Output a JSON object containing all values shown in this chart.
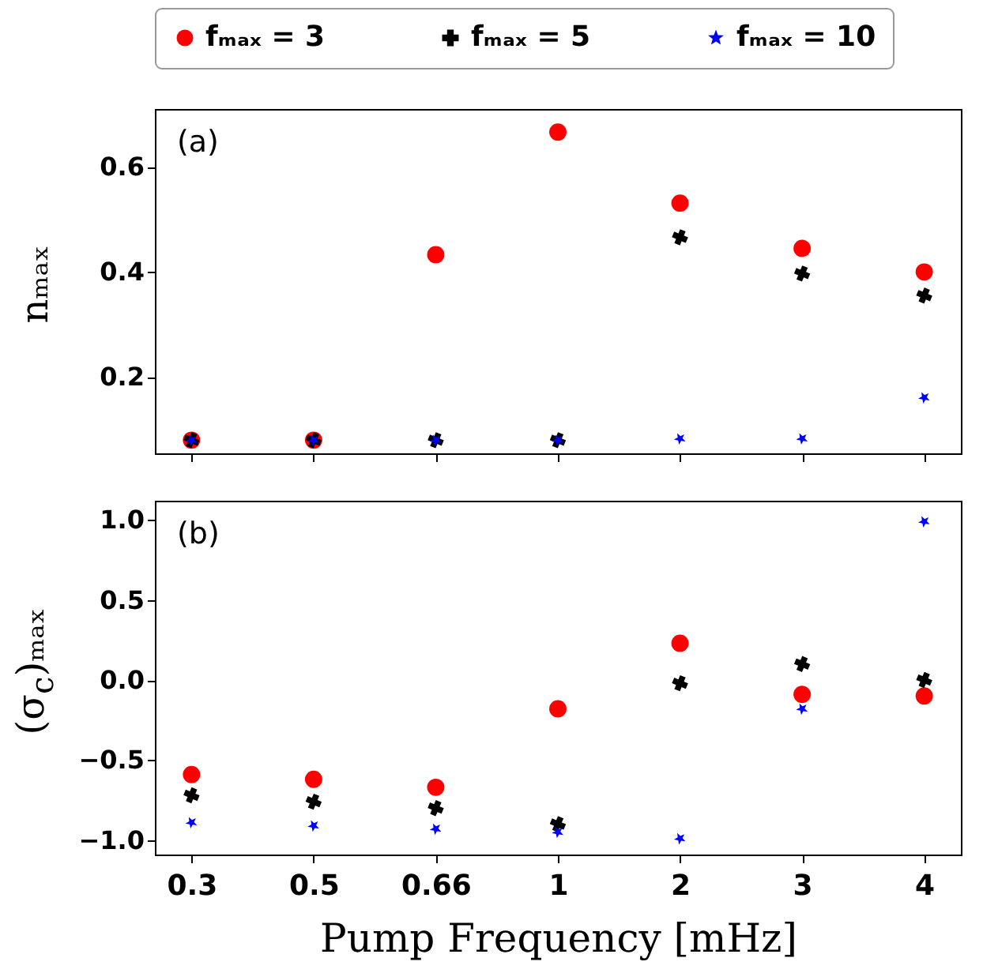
{
  "chart_data": [
    {
      "type": "scatter",
      "ylabel": "nₘₐₓ",
      "categories": [
        "0.3",
        "0.5",
        "0.66",
        "1",
        "2",
        "3",
        "4"
      ],
      "ylim": [
        0.055,
        0.71
      ],
      "yticks": [
        0.2,
        0.4,
        0.6
      ],
      "tick_labels": "y",
      "legend": "top",
      "grid": false,
      "annotations": [
        "(a)"
      ],
      "series": [
        {
          "name": "fₘₐₓ = 3",
          "color": "#ff0000",
          "marker": "circle",
          "values": [
            0.08,
            0.08,
            0.433,
            0.666,
            0.531,
            0.445,
            0.4
          ]
        },
        {
          "name": "fₘₐₓ = 5",
          "color": "#000000",
          "marker": "cross",
          "values": [
            0.08,
            0.08,
            0.08,
            0.08,
            0.466,
            0.397,
            0.355
          ]
        },
        {
          "name": "fₘₐₓ = 10",
          "color": "#0000ff",
          "marker": "star",
          "values": [
            0.08,
            0.08,
            0.08,
            0.08,
            0.083,
            0.083,
            0.161
          ]
        }
      ]
    },
    {
      "type": "scatter",
      "ylabel": "(σ$_{c}$)ₘₐₓ",
      "xlabel": "Pump Frequency [mHz]",
      "categories": [
        "0.3",
        "0.5",
        "0.66",
        "1",
        "2",
        "3",
        "4"
      ],
      "ylim": [
        -1.09,
        1.12
      ],
      "yticks": [
        {
          "value": -1,
          "label": "−1.0"
        },
        {
          "value": -0.5,
          "label": "−0.5"
        },
        {
          "value": 0,
          "label": "0.0"
        },
        {
          "value": 0.5,
          "label": "0.5"
        },
        {
          "value": 1,
          "label": "1.0"
        }
      ],
      "grid": false,
      "annotations": [
        "(b)"
      ],
      "series": [
        {
          "color": "#ff0000",
          "marker": "circle",
          "values": [
            -0.59,
            -0.62,
            -0.67,
            -0.18,
            0.23,
            -0.09,
            -0.1
          ]
        },
        {
          "color": "#000000",
          "marker": "cross",
          "values": [
            -0.72,
            -0.76,
            -0.8,
            -0.9,
            -0.02,
            0.1,
            0.0
          ]
        },
        {
          "color": "#0000ff",
          "marker": "star",
          "values": [
            -0.89,
            -0.91,
            -0.93,
            -0.95,
            -0.99,
            -0.18,
            0.99
          ]
        }
      ]
    }
  ]
}
